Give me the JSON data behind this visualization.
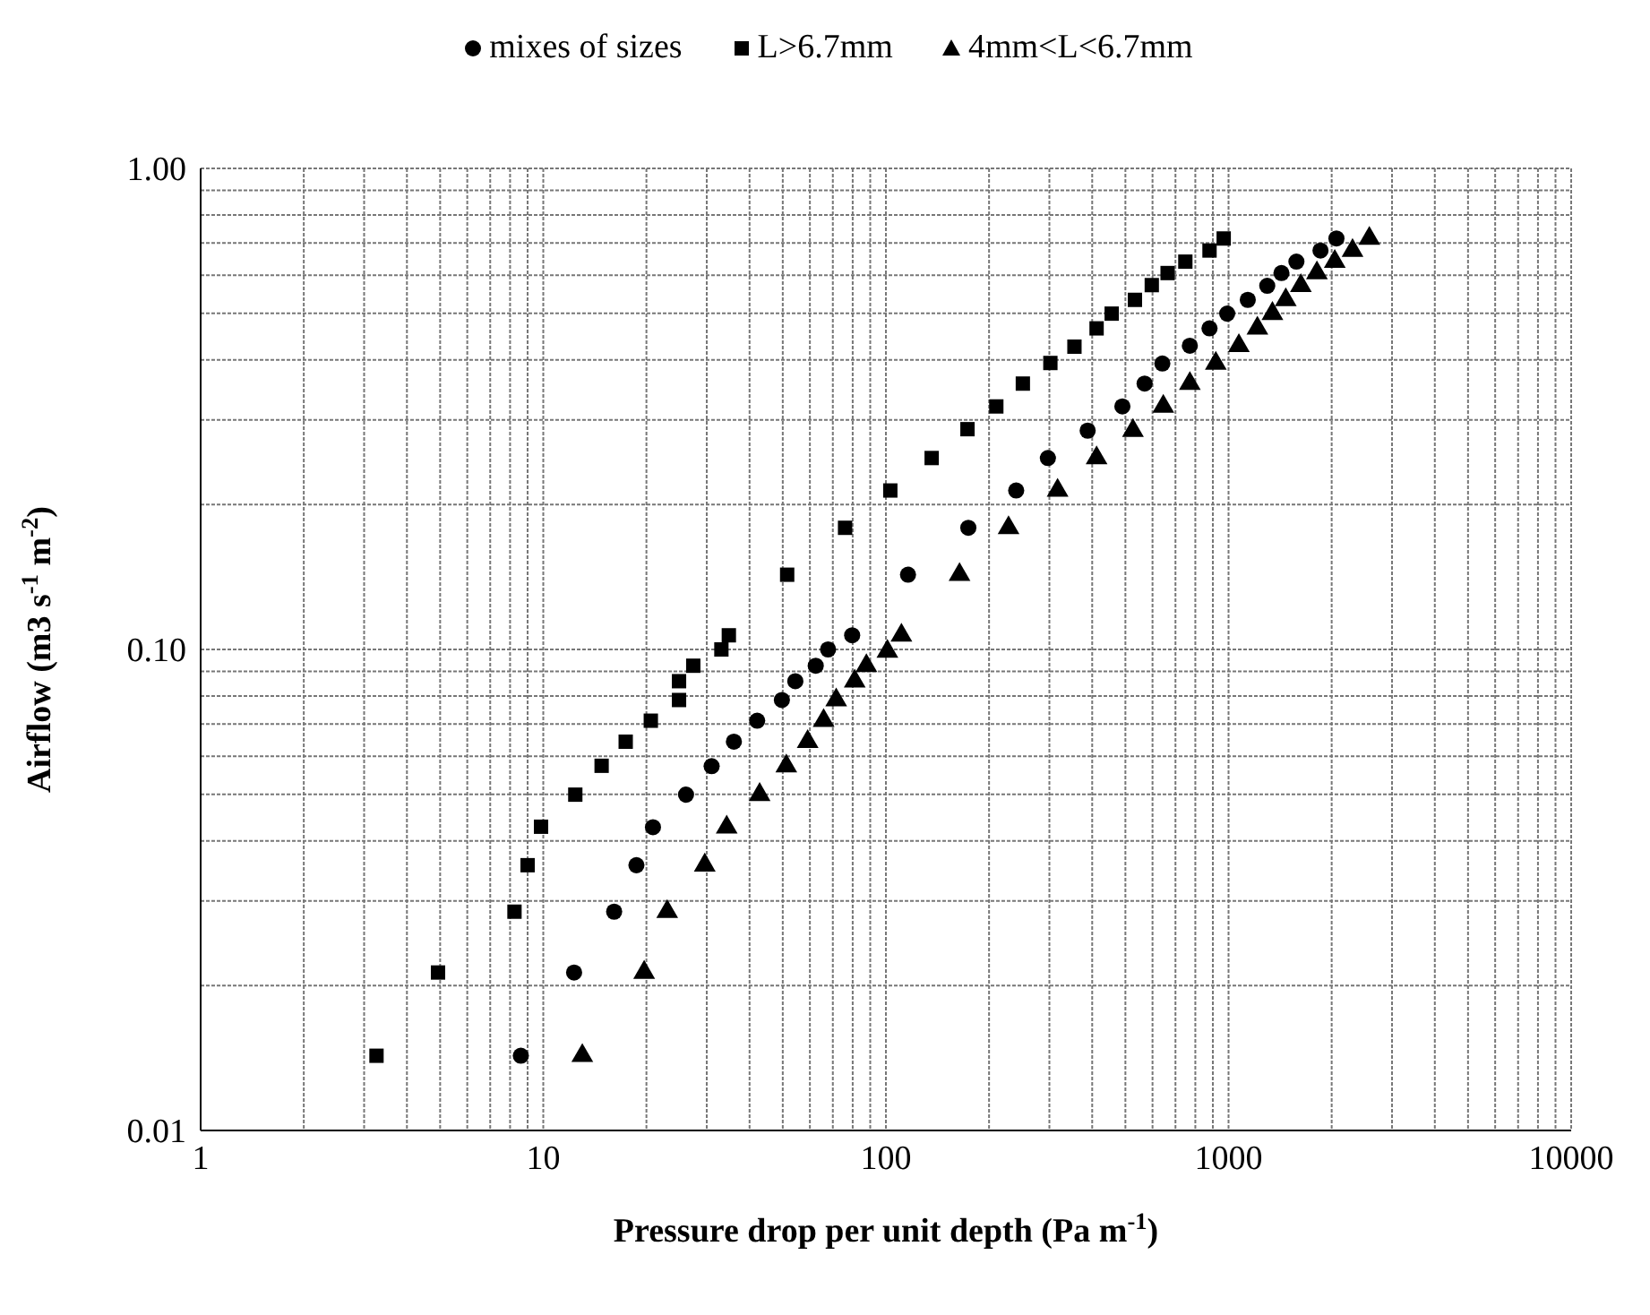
{
  "chart_data": {
    "type": "scatter",
    "xlabel": "Pressure drop per unit depth (Pa m$^{-1}$)",
    "ylabel": "Airflow (m3 s$^{-1}$ m$^{-2}$)",
    "log": "xy",
    "grid": true,
    "legend": "top",
    "xlim": [
      1,
      10000
    ],
    "ylim": [
      0.01,
      1
    ],
    "xticks": [
      1,
      {
        "value": 2,
        "label": null
      },
      {
        "value": 3,
        "label": null
      },
      {
        "value": 4,
        "label": null
      },
      {
        "value": 5,
        "label": null
      },
      {
        "value": 6,
        "label": null
      },
      {
        "value": 7,
        "label": null
      },
      {
        "value": 8,
        "label": null
      },
      {
        "value": 9,
        "label": null
      },
      10,
      {
        "value": 20,
        "label": null
      },
      {
        "value": 30,
        "label": null
      },
      {
        "value": 40,
        "label": null
      },
      {
        "value": 50,
        "label": null
      },
      {
        "value": 60,
        "label": null
      },
      {
        "value": 70,
        "label": null
      },
      {
        "value": 80,
        "label": null
      },
      {
        "value": 90,
        "label": null
      },
      100,
      {
        "value": 200,
        "label": null
      },
      {
        "value": 300,
        "label": null
      },
      {
        "value": 400,
        "label": null
      },
      {
        "value": 500,
        "label": null
      },
      {
        "value": 600,
        "label": null
      },
      {
        "value": 700,
        "label": null
      },
      {
        "value": 800,
        "label": null
      },
      {
        "value": 900,
        "label": null
      },
      1000,
      {
        "value": 2000,
        "label": null
      },
      {
        "value": 3000,
        "label": null
      },
      {
        "value": 4000,
        "label": null
      },
      {
        "value": 5000,
        "label": null
      },
      {
        "value": 6000,
        "label": null
      },
      {
        "value": 7000,
        "label": null
      },
      {
        "value": 8000,
        "label": null
      },
      {
        "value": 9000,
        "label": null
      },
      10000
    ],
    "yticks": [
      {
        "value": 0.01,
        "label": "0.01"
      },
      {
        "value": 0.02,
        "label": null
      },
      {
        "value": 0.03,
        "label": null
      },
      {
        "value": 0.04,
        "label": null
      },
      {
        "value": 0.05,
        "label": null
      },
      {
        "value": 0.06,
        "label": null
      },
      {
        "value": 0.07,
        "label": null
      },
      {
        "value": 0.08,
        "label": null
      },
      {
        "value": 0.09,
        "label": null
      },
      {
        "value": 0.1,
        "label": "0.10"
      },
      {
        "value": 0.2,
        "label": null
      },
      {
        "value": 0.3,
        "label": null
      },
      {
        "value": 0.4,
        "label": null
      },
      {
        "value": 0.5,
        "label": null
      },
      {
        "value": 0.6,
        "label": null
      },
      {
        "value": 0.7,
        "label": null
      },
      {
        "value": 0.8,
        "label": null
      },
      {
        "value": 0.9,
        "label": null
      },
      {
        "value": 1,
        "label": "1.00"
      }
    ],
    "series": [
      {
        "name": "mixes of sizes",
        "color": "#000000",
        "marker": "circle",
        "x": [
          8.6,
          12.3,
          16.1,
          18.7,
          20.9,
          26.1,
          31,
          36,
          42.1,
          49.7,
          54.4,
          62.4,
          67.8,
          79.7,
          116,
          174,
          240,
          297,
          388,
          490,
          569,
          641,
          771,
          880,
          991,
          1138,
          1297,
          1427,
          1578,
          1855,
          2065
        ],
        "values": [
          0.0143,
          0.0213,
          0.0285,
          0.0356,
          0.0427,
          0.0499,
          0.0572,
          0.0643,
          0.0711,
          0.0785,
          0.0859,
          0.0925,
          0.1,
          0.107,
          0.143,
          0.179,
          0.214,
          0.25,
          0.285,
          0.32,
          0.357,
          0.393,
          0.428,
          0.465,
          0.499,
          0.533,
          0.57,
          0.606,
          0.64,
          0.675,
          0.715
        ]
      },
      {
        "name": "L>6.7mm",
        "color": "#000000",
        "marker": "square",
        "x": [
          3.26,
          4.93,
          8.24,
          9,
          9.85,
          12.4,
          14.8,
          17.4,
          20.6,
          24.9,
          24.9,
          27.4,
          33.1,
          34.8,
          51.5,
          76,
          103,
          136,
          173,
          210,
          251,
          302,
          355,
          412,
          456,
          533,
          597,
          664,
          748,
          880,
          968
        ],
        "values": [
          0.0143,
          0.0213,
          0.0285,
          0.0356,
          0.0428,
          0.0499,
          0.0573,
          0.0643,
          0.0711,
          0.0785,
          0.0859,
          0.0925,
          0.1,
          0.107,
          0.143,
          0.179,
          0.214,
          0.25,
          0.287,
          0.32,
          0.357,
          0.394,
          0.426,
          0.465,
          0.499,
          0.533,
          0.572,
          0.606,
          0.64,
          0.675,
          0.715
        ]
      },
      {
        "name": "4mm<L<6.7mm",
        "color": "#000000",
        "marker": "triangle",
        "x": [
          13,
          19.7,
          23,
          29.6,
          34.3,
          42.8,
          51.2,
          59.1,
          65.8,
          71.6,
          81.1,
          87.7,
          101,
          111,
          164,
          228,
          317,
          412,
          526,
          645,
          771,
          918,
          1072,
          1214,
          1343,
          1469,
          1626,
          1811,
          2042,
          2301,
          2576
        ],
        "values": [
          0.0143,
          0.0213,
          0.0285,
          0.0356,
          0.0427,
          0.0499,
          0.0572,
          0.0643,
          0.0711,
          0.0785,
          0.0859,
          0.0925,
          0.099,
          0.107,
          0.143,
          0.179,
          0.214,
          0.25,
          0.285,
          0.32,
          0.357,
          0.393,
          0.428,
          0.465,
          0.499,
          0.533,
          0.57,
          0.606,
          0.64,
          0.675,
          0.715
        ]
      }
    ]
  }
}
